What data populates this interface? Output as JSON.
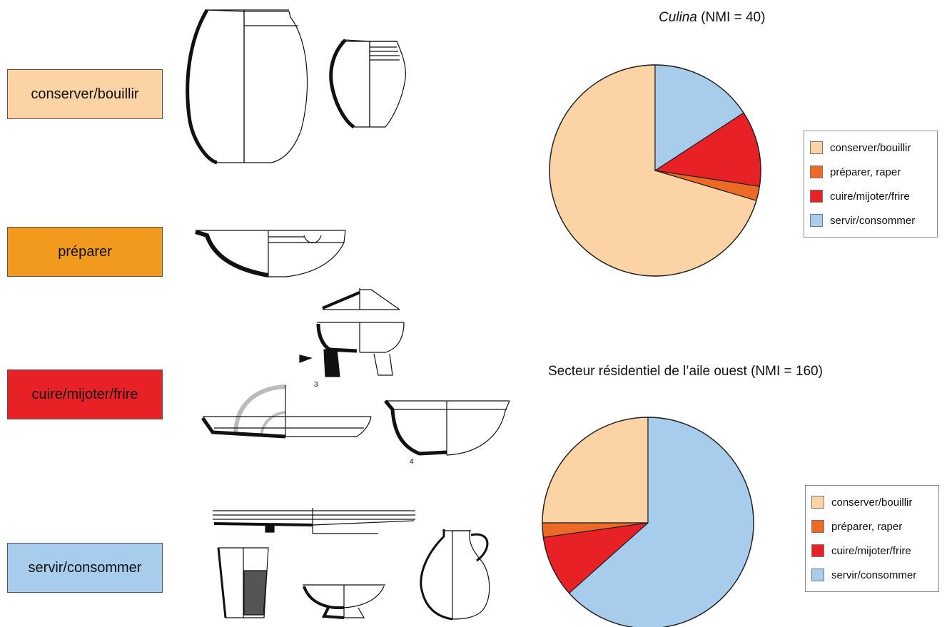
{
  "categories": [
    {
      "label": "conserver/bouillir",
      "color": "#fbd3a5"
    },
    {
      "label": "préparer",
      "color": "#f29a1e"
    },
    {
      "label": "cuire/mijoter/frire",
      "color": "#e82126"
    },
    {
      "label": "servir/consommer",
      "color": "#a7ccec"
    }
  ],
  "drawing_labels": {
    "fig3": "3",
    "fig4": "4"
  },
  "chart_data": [
    {
      "type": "pie",
      "title_italic": "Culina",
      "title_rest": " (NMI = 40)",
      "categories": [
        "conserver/bouillir",
        "préparer, raper",
        "cuire/mijoter/frire",
        "servir/consommer"
      ],
      "values": [
        0.704,
        0.022,
        0.116,
        0.158
      ],
      "colors": [
        "#fbd3a5",
        "#ec6a25",
        "#e82126",
        "#a7ccec"
      ],
      "legend": "right"
    },
    {
      "type": "pie",
      "title_italic": "",
      "title_rest": "Secteur résidentiel de l’aile  ouest (NMI = 160)",
      "categories": [
        "conserver/bouillir",
        "préparer, raper",
        "cuire/mijoter/frire",
        "servir/consommer"
      ],
      "values": [
        0.25,
        0.022,
        0.094,
        0.634
      ],
      "colors": [
        "#fbd3a5",
        "#ec6a25",
        "#e82126",
        "#a7ccec"
      ],
      "legend": "right"
    }
  ]
}
